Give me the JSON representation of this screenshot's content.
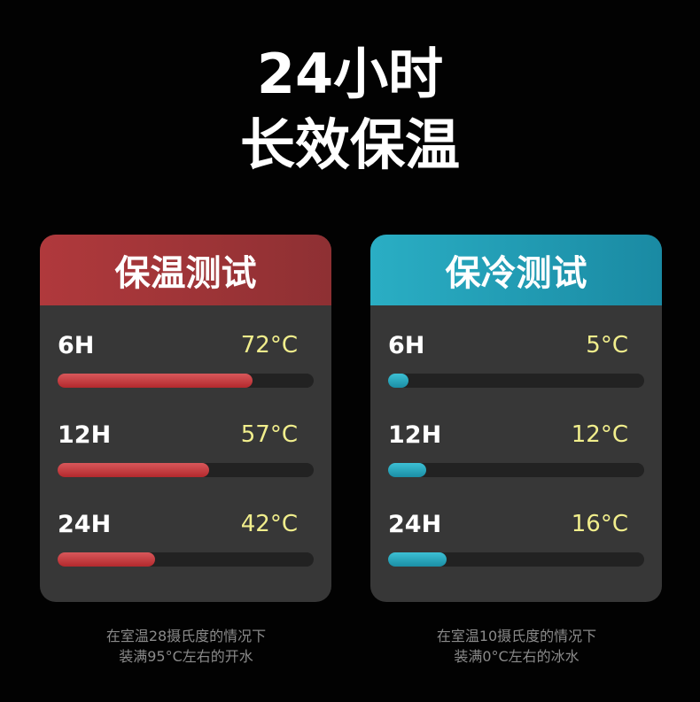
{
  "title": {
    "line1": "24小时",
    "line2": "长效保温"
  },
  "colors": {
    "hot_accent": "#b0393c",
    "cold_accent": "#2aaec4",
    "value_text": "#f1ee8c"
  },
  "hot": {
    "header": "保温测试",
    "rows": [
      {
        "label": "6H",
        "value": "72°C",
        "fill_percent": 76
      },
      {
        "label": "12H",
        "value": "57°C",
        "fill_percent": 59
      },
      {
        "label": "24H",
        "value": "42°C",
        "fill_percent": 38
      }
    ],
    "note": [
      "在室温28摄氏度的情况下",
      "装满95°C左右的开水"
    ]
  },
  "cold": {
    "header": "保冷测试",
    "rows": [
      {
        "label": "6H",
        "value": "5°C",
        "fill_percent": 8
      },
      {
        "label": "12H",
        "value": "12°C",
        "fill_percent": 15
      },
      {
        "label": "24H",
        "value": "16°C",
        "fill_percent": 23
      }
    ],
    "note": [
      "在室温10摄氏度的情况下",
      "装满0°C左右的冰水"
    ]
  }
}
